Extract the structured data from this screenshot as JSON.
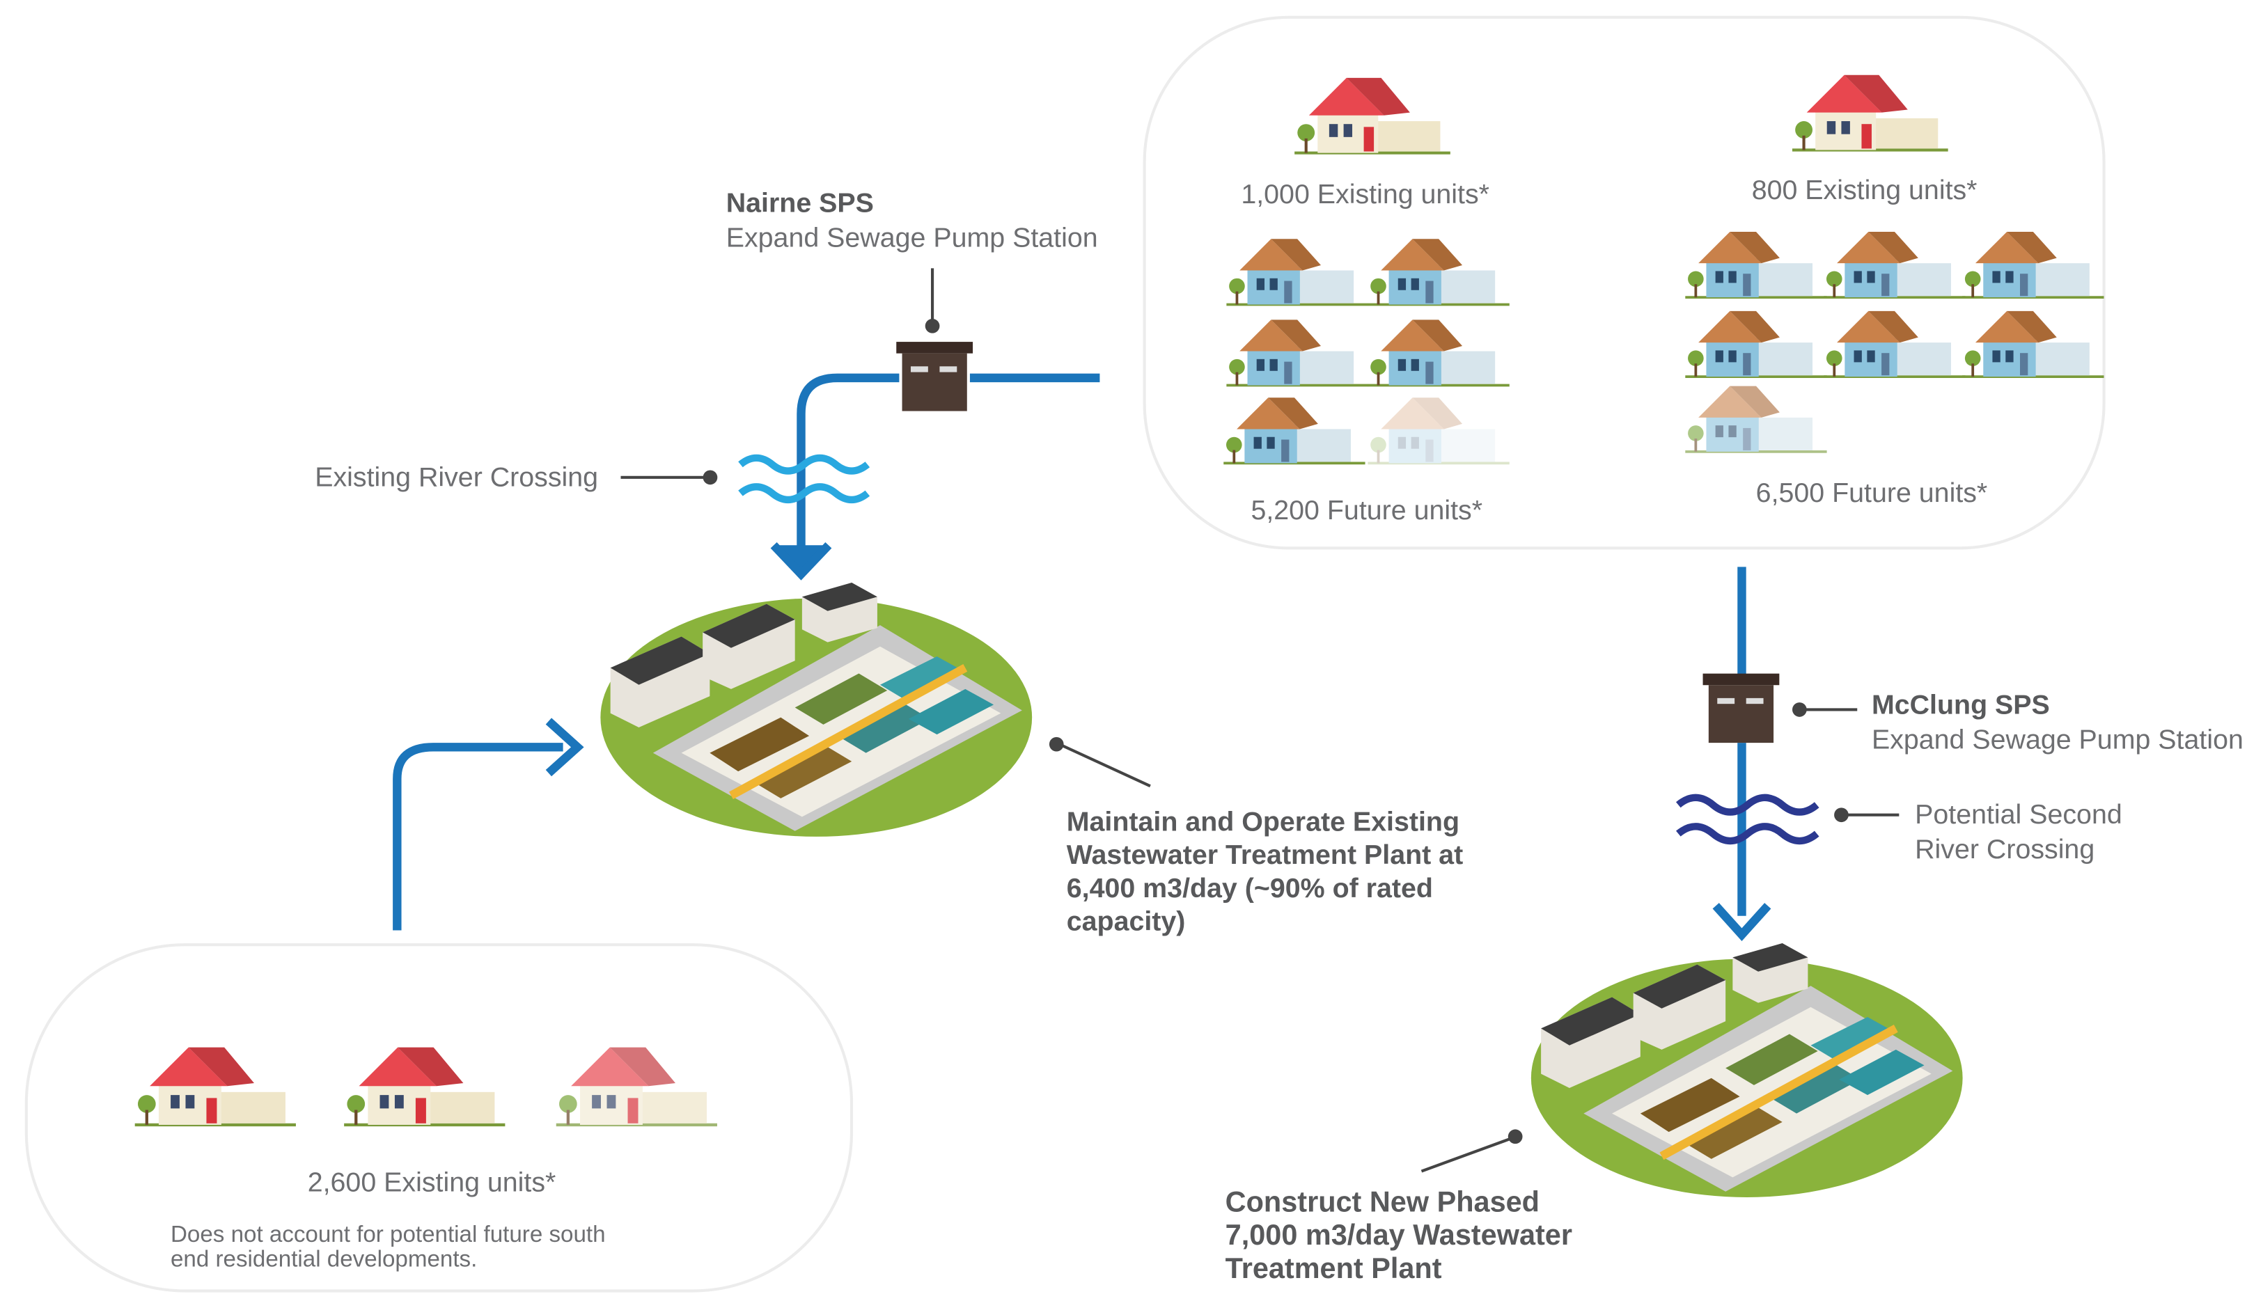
{
  "nairne": {
    "title": "Nairne SPS",
    "subtitle": "Expand Sewage Pump Station"
  },
  "river_crossing": "Existing River Crossing",
  "existing_plant": {
    "lines": [
      "Maintain and Operate Existing",
      "Wastewater Treatment Plant at",
      "6,400 m3/day (~90% of rated",
      "capacity)"
    ]
  },
  "mcclung": {
    "title": "McClung SPS",
    "subtitle": "Expand Sewage Pump Station"
  },
  "second_crossing": {
    "lines": [
      "Potential Second",
      "River Crossing"
    ]
  },
  "new_plant": {
    "lines": [
      "Construct New Phased",
      "7,000 m3/day Wastewater",
      "Treatment Plant"
    ]
  },
  "groups": {
    "north_left_existing": "1,000 Existing units*",
    "north_left_future": "5,200 Future units*",
    "north_right_existing": "800 Existing units*",
    "north_right_future": "6,500 Future units*",
    "south_existing": "2,600 Existing units*",
    "south_note": [
      "Does not account for potential future south",
      "end residential developments."
    ]
  }
}
